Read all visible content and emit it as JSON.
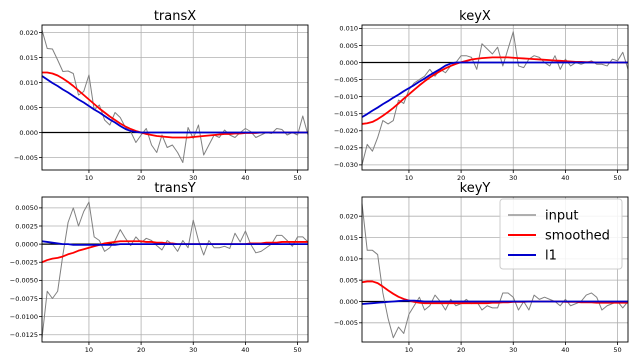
{
  "legend": {
    "entries": [
      {
        "label": "input",
        "color": "#808080"
      },
      {
        "label": "smoothed",
        "color": "#ff0000"
      },
      {
        "label": "l1",
        "color": "#0000cc"
      }
    ],
    "placement": "upper-right of keyY subplot"
  },
  "chart_data": [
    {
      "type": "line",
      "title": "transX",
      "xlabel": "",
      "ylabel": "",
      "xlim": [
        1,
        52
      ],
      "ylim": [
        -0.0075,
        0.0215
      ],
      "xticks": [
        10,
        20,
        30,
        40,
        50
      ],
      "yticks": [
        -0.005,
        0.0,
        0.005,
        0.01,
        0.015,
        0.02
      ],
      "ytick_labels": [
        "−0.005",
        "0.000",
        "0.005",
        "0.010",
        "0.015",
        "0.020"
      ],
      "grid": true,
      "zero_line": true,
      "x": [
        1,
        2,
        3,
        4,
        5,
        6,
        7,
        8,
        9,
        10,
        11,
        12,
        13,
        14,
        15,
        16,
        17,
        18,
        19,
        20,
        21,
        22,
        23,
        24,
        25,
        26,
        27,
        28,
        29,
        30,
        31,
        32,
        33,
        34,
        35,
        36,
        37,
        38,
        39,
        40,
        41,
        42,
        43,
        44,
        45,
        46,
        47,
        48,
        49,
        50,
        51,
        52
      ],
      "series": [
        {
          "name": "input",
          "color": "#808080",
          "values": [
            0.0205,
            0.0168,
            0.0167,
            0.0145,
            0.0122,
            0.0123,
            0.0118,
            0.0075,
            0.0082,
            0.0115,
            0.0045,
            0.0055,
            0.0025,
            0.0015,
            0.004,
            0.003,
            0.001,
            0.0002,
            -0.002,
            -0.0005,
            0.0008,
            -0.0025,
            -0.004,
            -0.0005,
            -0.003,
            -0.0025,
            -0.004,
            -0.006,
            0.001,
            -0.0012,
            0.0015,
            -0.0045,
            -0.0025,
            -0.0005,
            -0.001,
            0.0005,
            -0.0005,
            -0.001,
            0.0,
            0.0008,
            0.0002,
            -0.001,
            -0.0005,
            0.0,
            -0.0002,
            0.0008,
            0.0006,
            -0.0005,
            0.0,
            -0.0005,
            0.0033,
            -0.0005
          ]
        },
        {
          "name": "smoothed",
          "color": "#ff0000",
          "values": [
            0.012,
            0.012,
            0.0118,
            0.0114,
            0.0108,
            0.0101,
            0.0093,
            0.0084,
            0.0075,
            0.0066,
            0.0057,
            0.0048,
            0.004,
            0.0032,
            0.0025,
            0.0018,
            0.0012,
            0.0007,
            0.0003,
            0.0,
            -0.0003,
            -0.0005,
            -0.0007,
            -0.0008,
            -0.0009,
            -0.001,
            -0.001,
            -0.001,
            -0.001,
            -0.0009,
            -0.0008,
            -0.0007,
            -0.0006,
            -0.0005,
            -0.0004,
            -0.0003,
            -0.0003,
            -0.0002,
            -0.0002,
            -0.0001,
            -0.0001,
            -0.0001,
            0.0,
            0.0,
            0.0,
            0.0,
            0.0,
            0.0,
            0.0,
            0.0,
            0.0,
            0.0
          ]
        },
        {
          "name": "l1",
          "color": "#0000cc",
          "values": [
            0.0113,
            0.0106,
            0.0099,
            0.0093,
            0.0086,
            0.008,
            0.0073,
            0.0066,
            0.006,
            0.0053,
            0.0046,
            0.004,
            0.0033,
            0.0026,
            0.002,
            0.0013,
            0.0007,
            0.0003,
            0.0001,
            0.0,
            0.0,
            0.0,
            0.0,
            0.0,
            0.0,
            0.0,
            0.0,
            0.0,
            0.0,
            0.0,
            0.0,
            0.0,
            0.0,
            0.0,
            0.0,
            0.0,
            0.0,
            0.0,
            0.0,
            0.0,
            0.0,
            0.0,
            0.0,
            0.0,
            0.0,
            0.0,
            0.0,
            0.0,
            0.0,
            0.0,
            0.0,
            0.0
          ]
        }
      ]
    },
    {
      "type": "line",
      "title": "keyX",
      "xlabel": "",
      "ylabel": "",
      "xlim": [
        1,
        52
      ],
      "ylim": [
        -0.0315,
        0.011
      ],
      "xticks": [
        10,
        20,
        30,
        40,
        50
      ],
      "yticks": [
        -0.03,
        -0.025,
        -0.02,
        -0.015,
        -0.01,
        -0.005,
        0.0,
        0.005,
        0.01
      ],
      "ytick_labels": [
        "−0.030",
        "−0.025",
        "−0.020",
        "−0.015",
        "−0.010",
        "−0.005",
        "0.000",
        "0.005",
        "0.010"
      ],
      "grid": true,
      "zero_line": true,
      "x": [
        1,
        2,
        3,
        4,
        5,
        6,
        7,
        8,
        9,
        10,
        11,
        12,
        13,
        14,
        15,
        16,
        17,
        18,
        19,
        20,
        21,
        22,
        23,
        24,
        25,
        26,
        27,
        28,
        29,
        30,
        31,
        32,
        33,
        34,
        35,
        36,
        37,
        38,
        39,
        40,
        41,
        42,
        43,
        44,
        45,
        46,
        47,
        48,
        49,
        50,
        51,
        52
      ],
      "series": [
        {
          "name": "input",
          "color": "#808080",
          "values": [
            -0.03,
            -0.024,
            -0.026,
            -0.022,
            -0.017,
            -0.018,
            -0.017,
            -0.011,
            -0.012,
            -0.008,
            -0.006,
            -0.005,
            -0.004,
            -0.002,
            -0.004,
            -0.002,
            -0.003,
            -0.001,
            0.0,
            0.002,
            0.002,
            0.0015,
            -0.002,
            0.0055,
            0.004,
            0.0025,
            0.0045,
            -0.001,
            0.004,
            0.009,
            -0.001,
            -0.0015,
            0.001,
            0.002,
            0.0015,
            0.0,
            -0.001,
            0.002,
            -0.002,
            0.001,
            -0.001,
            0.0,
            -0.0005,
            0.0,
            0.0005,
            -0.0005,
            -0.0005,
            -0.001,
            0.001,
            0.0005,
            0.003,
            -0.002
          ]
        },
        {
          "name": "smoothed",
          "color": "#ff0000",
          "values": [
            -0.018,
            -0.0178,
            -0.0174,
            -0.0166,
            -0.0156,
            -0.0145,
            -0.0133,
            -0.012,
            -0.0106,
            -0.0093,
            -0.008,
            -0.0067,
            -0.0055,
            -0.0044,
            -0.0034,
            -0.0025,
            -0.0017,
            -0.001,
            -0.0004,
            0.0001,
            0.0005,
            0.0009,
            0.0011,
            0.0013,
            0.0014,
            0.0015,
            0.0015,
            0.0015,
            0.0015,
            0.0014,
            0.0013,
            0.0012,
            0.0011,
            0.001,
            0.0009,
            0.0008,
            0.0007,
            0.0006,
            0.0005,
            0.0004,
            0.0003,
            0.0002,
            0.0002,
            0.0001,
            0.0001,
            0.0,
            0.0,
            0.0,
            0.0,
            0.0,
            0.0,
            0.0
          ]
        },
        {
          "name": "l1",
          "color": "#0000cc",
          "values": [
            -0.016,
            -0.0151,
            -0.0141,
            -0.0132,
            -0.0122,
            -0.0113,
            -0.0103,
            -0.0094,
            -0.0084,
            -0.0075,
            -0.0066,
            -0.0056,
            -0.0047,
            -0.0037,
            -0.0028,
            -0.0019,
            -0.0009,
            -0.0003,
            0.0,
            0.0,
            0.0,
            0.0,
            0.0,
            0.0,
            0.0,
            0.0,
            0.0,
            0.0,
            0.0,
            0.0,
            0.0,
            0.0,
            0.0,
            0.0,
            0.0,
            0.0,
            0.0,
            0.0,
            0.0,
            0.0,
            0.0,
            0.0,
            0.0,
            0.0,
            0.0,
            0.0,
            0.0,
            0.0,
            0.0,
            0.0,
            0.0,
            0.0
          ]
        }
      ]
    },
    {
      "type": "line",
      "title": "transY",
      "xlabel": "",
      "ylabel": "",
      "xlim": [
        1,
        52
      ],
      "ylim": [
        -0.0135,
        0.0065
      ],
      "xticks": [
        10,
        20,
        30,
        40,
        50
      ],
      "yticks": [
        -0.0125,
        -0.01,
        -0.0075,
        -0.005,
        -0.0025,
        0.0,
        0.0025,
        0.005
      ],
      "ytick_labels": [
        "−0.0125",
        "−0.0100",
        "−0.0075",
        "−0.0050",
        "−0.0025",
        "0.0000",
        "0.0025",
        "0.0050"
      ],
      "grid": true,
      "zero_line": true,
      "x": [
        1,
        2,
        3,
        4,
        5,
        6,
        7,
        8,
        9,
        10,
        11,
        12,
        13,
        14,
        15,
        16,
        17,
        18,
        19,
        20,
        21,
        22,
        23,
        24,
        25,
        26,
        27,
        28,
        29,
        30,
        31,
        32,
        33,
        34,
        35,
        36,
        37,
        38,
        39,
        40,
        41,
        42,
        43,
        44,
        45,
        46,
        47,
        48,
        49,
        50,
        51,
        52
      ],
      "series": [
        {
          "name": "input",
          "color": "#808080",
          "values": [
            -0.013,
            -0.0065,
            -0.0075,
            -0.0065,
            -0.0015,
            0.003,
            0.005,
            0.0025,
            0.0045,
            0.0058,
            0.001,
            0.0005,
            -0.001,
            -0.0005,
            0.0005,
            0.002,
            0.0008,
            -0.0002,
            0.001,
            0.0002,
            0.0008,
            0.0005,
            -0.0002,
            -0.0008,
            0.0005,
            0.0,
            -0.001,
            0.0005,
            -0.0005,
            0.0033,
            0.0005,
            -0.0015,
            0.0005,
            -0.0005,
            -0.0005,
            -0.0003,
            -0.0006,
            0.0015,
            0.0003,
            0.0018,
            0.0,
            -0.0012,
            -0.001,
            -0.0005,
            0.0,
            0.0012,
            0.0012,
            0.0005,
            -0.0003,
            0.001,
            0.001,
            0.0003
          ]
        },
        {
          "name": "smoothed",
          "color": "#ff0000",
          "values": [
            -0.0025,
            -0.0022,
            -0.002,
            -0.0019,
            -0.0017,
            -0.0014,
            -0.0012,
            -0.0009,
            -0.0007,
            -0.0005,
            -0.0003,
            -0.0001,
            0.0001,
            0.0002,
            0.0003,
            0.0004,
            0.0004,
            0.0004,
            0.0004,
            0.0004,
            0.0003,
            0.0003,
            0.0002,
            0.0002,
            0.0001,
            0.0001,
            0.0,
            0.0,
            0.0,
            0.0,
            0.0,
            0.0,
            0.0,
            0.0,
            0.0,
            0.0,
            0.0,
            0.0,
            0.0,
            0.0,
            0.0001,
            0.0001,
            0.0001,
            0.0002,
            0.0002,
            0.0002,
            0.0003,
            0.0003,
            0.0003,
            0.0003,
            0.0003,
            0.0003
          ]
        },
        {
          "name": "l1",
          "color": "#0000cc",
          "values": [
            0.0004,
            0.0003,
            0.0002,
            0.0001,
            0.0,
            0.0,
            -0.0001,
            -0.0001,
            -0.0001,
            -0.0001,
            -0.0001,
            -0.0001,
            -0.0001,
            -0.0001,
            -0.0001,
            0.0,
            0.0,
            0.0,
            0.0,
            0.0,
            0.0,
            0.0,
            0.0,
            0.0,
            0.0,
            0.0,
            0.0,
            0.0,
            0.0,
            0.0,
            0.0,
            0.0,
            0.0,
            0.0,
            0.0,
            0.0,
            0.0,
            0.0,
            0.0,
            0.0,
            0.0,
            0.0,
            0.0,
            0.0,
            0.0,
            0.0,
            0.0,
            0.0,
            0.0,
            0.0,
            0.0,
            0.0
          ]
        }
      ]
    },
    {
      "type": "line",
      "title": "keyY",
      "xlabel": "",
      "ylabel": "",
      "xlim": [
        1,
        52
      ],
      "ylim": [
        -0.0095,
        0.0245
      ],
      "xticks": [
        10,
        20,
        30,
        40,
        50
      ],
      "yticks": [
        -0.005,
        0.0,
        0.005,
        0.01,
        0.015,
        0.02
      ],
      "ytick_labels": [
        "−0.005",
        "0.000",
        "0.005",
        "0.010",
        "0.015",
        "0.020"
      ],
      "grid": true,
      "zero_line": true,
      "x": [
        1,
        2,
        3,
        4,
        5,
        6,
        7,
        8,
        9,
        10,
        11,
        12,
        13,
        14,
        15,
        16,
        17,
        18,
        19,
        20,
        21,
        22,
        23,
        24,
        25,
        26,
        27,
        28,
        29,
        30,
        31,
        32,
        33,
        34,
        35,
        36,
        37,
        38,
        39,
        40,
        41,
        42,
        43,
        44,
        45,
        46,
        47,
        48,
        49,
        50,
        51,
        52
      ],
      "series": [
        {
          "name": "input",
          "color": "#808080",
          "values": [
            0.023,
            0.012,
            0.012,
            0.011,
            0.002,
            -0.004,
            -0.0085,
            -0.006,
            -0.0075,
            -0.003,
            -0.001,
            0.001,
            -0.002,
            -0.001,
            0.0015,
            0.0,
            -0.002,
            0.0005,
            -0.001,
            -0.0005,
            0.0005,
            -0.0005,
            0.0,
            -0.002,
            -0.001,
            -0.0015,
            -0.0015,
            0.002,
            0.002,
            0.001,
            -0.002,
            0.0,
            -0.002,
            0.0015,
            0.0005,
            0.001,
            0.0005,
            0.0,
            -0.001,
            0.0005,
            -0.001,
            -0.0005,
            0.0,
            0.0015,
            0.002,
            0.001,
            -0.002,
            -0.001,
            -0.0005,
            0.0,
            -0.0015,
            0.0
          ]
        },
        {
          "name": "smoothed",
          "color": "#ff0000",
          "values": [
            0.0045,
            0.0047,
            0.0047,
            0.0043,
            0.0035,
            0.0026,
            0.0018,
            0.0011,
            0.0006,
            0.0002,
            -0.0001,
            -0.0003,
            -0.0004,
            -0.0004,
            -0.0004,
            -0.0004,
            -0.0004,
            -0.0004,
            -0.0004,
            -0.0004,
            -0.0004,
            -0.0004,
            -0.0004,
            -0.0004,
            -0.0004,
            -0.0003,
            -0.0003,
            -0.0002,
            -0.0002,
            -0.0001,
            -0.0001,
            -0.0001,
            0.0,
            0.0,
            0.0,
            0.0,
            0.0,
            0.0,
            0.0,
            -0.0001,
            -0.0001,
            -0.0001,
            -0.0002,
            -0.0002,
            -0.0002,
            -0.0003,
            -0.0003,
            -0.0003,
            -0.0003,
            -0.0003,
            -0.0003,
            -0.0003
          ]
        },
        {
          "name": "l1",
          "color": "#0000cc",
          "values": [
            -0.0006,
            -0.0005,
            -0.0004,
            -0.0003,
            -0.0002,
            -0.0001,
            0.0,
            0.0001,
            0.0002,
            0.0002,
            0.0002,
            0.0001,
            0.0,
            0.0,
            0.0,
            0.0,
            0.0,
            0.0,
            0.0,
            0.0,
            0.0,
            0.0,
            0.0,
            0.0,
            0.0,
            0.0,
            0.0,
            0.0,
            0.0,
            0.0,
            0.0,
            0.0,
            0.0,
            0.0,
            0.0,
            0.0,
            0.0,
            0.0,
            0.0,
            0.0,
            0.0,
            0.0,
            0.0,
            0.0,
            0.0,
            0.0,
            0.0,
            0.0,
            0.0,
            0.0,
            0.0,
            0.0
          ]
        }
      ]
    }
  ]
}
